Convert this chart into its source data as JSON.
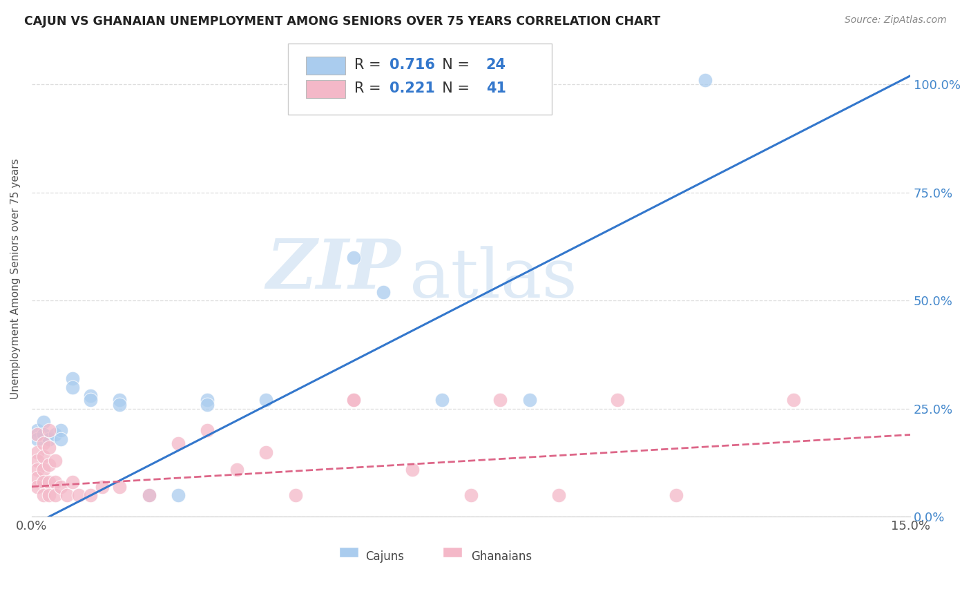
{
  "title": "CAJUN VS GHANAIAN UNEMPLOYMENT AMONG SENIORS OVER 75 YEARS CORRELATION CHART",
  "source": "Source: ZipAtlas.com",
  "ylabel": "Unemployment Among Seniors over 75 years",
  "cajun_R": "0.716",
  "cajun_N": "24",
  "ghanaian_R": "0.221",
  "ghanaian_N": "41",
  "cajun_color": "#aaccee",
  "ghanaian_color": "#f4b8c8",
  "cajun_line_color": "#3377cc",
  "ghanaian_line_color": "#dd6688",
  "watermark_zip": "ZIP",
  "watermark_atlas": "atlas",
  "cajun_points": [
    [
      0.001,
      0.2
    ],
    [
      0.001,
      0.18
    ],
    [
      0.002,
      0.22
    ],
    [
      0.002,
      0.19
    ],
    [
      0.003,
      0.18
    ],
    [
      0.004,
      0.19
    ],
    [
      0.005,
      0.2
    ],
    [
      0.005,
      0.18
    ],
    [
      0.007,
      0.32
    ],
    [
      0.007,
      0.3
    ],
    [
      0.01,
      0.28
    ],
    [
      0.01,
      0.27
    ],
    [
      0.015,
      0.27
    ],
    [
      0.015,
      0.26
    ],
    [
      0.02,
      0.05
    ],
    [
      0.025,
      0.05
    ],
    [
      0.03,
      0.27
    ],
    [
      0.03,
      0.26
    ],
    [
      0.04,
      0.27
    ],
    [
      0.055,
      0.6
    ],
    [
      0.06,
      0.52
    ],
    [
      0.07,
      0.27
    ],
    [
      0.085,
      0.27
    ],
    [
      0.115,
      1.01
    ]
  ],
  "ghanaian_points": [
    [
      0.001,
      0.19
    ],
    [
      0.001,
      0.15
    ],
    [
      0.001,
      0.13
    ],
    [
      0.001,
      0.11
    ],
    [
      0.001,
      0.09
    ],
    [
      0.001,
      0.07
    ],
    [
      0.002,
      0.17
    ],
    [
      0.002,
      0.14
    ],
    [
      0.002,
      0.11
    ],
    [
      0.002,
      0.08
    ],
    [
      0.002,
      0.05
    ],
    [
      0.003,
      0.2
    ],
    [
      0.003,
      0.16
    ],
    [
      0.003,
      0.12
    ],
    [
      0.003,
      0.08
    ],
    [
      0.003,
      0.05
    ],
    [
      0.004,
      0.13
    ],
    [
      0.004,
      0.08
    ],
    [
      0.004,
      0.05
    ],
    [
      0.005,
      0.07
    ],
    [
      0.006,
      0.05
    ],
    [
      0.007,
      0.08
    ],
    [
      0.008,
      0.05
    ],
    [
      0.01,
      0.05
    ],
    [
      0.012,
      0.07
    ],
    [
      0.015,
      0.07
    ],
    [
      0.02,
      0.05
    ],
    [
      0.025,
      0.17
    ],
    [
      0.03,
      0.2
    ],
    [
      0.035,
      0.11
    ],
    [
      0.04,
      0.15
    ],
    [
      0.045,
      0.05
    ],
    [
      0.055,
      0.27
    ],
    [
      0.055,
      0.27
    ],
    [
      0.065,
      0.11
    ],
    [
      0.075,
      0.05
    ],
    [
      0.08,
      0.27
    ],
    [
      0.09,
      0.05
    ],
    [
      0.1,
      0.27
    ],
    [
      0.11,
      0.05
    ],
    [
      0.13,
      0.27
    ]
  ],
  "xlim": [
    0.0,
    0.15
  ],
  "ylim": [
    0.0,
    1.1
  ],
  "x_ticks": [
    0.0,
    0.025,
    0.05,
    0.075,
    0.1,
    0.125,
    0.15
  ],
  "y_ticks": [
    0.0,
    0.25,
    0.5,
    0.75,
    1.0
  ],
  "y_tick_labels": [
    "0.0%",
    "25.0%",
    "50.0%",
    "75.0%",
    "100.0%"
  ],
  "figsize": [
    14.06,
    8.92
  ],
  "legend_R_color": "#3377cc",
  "legend_N_color": "#3377cc"
}
